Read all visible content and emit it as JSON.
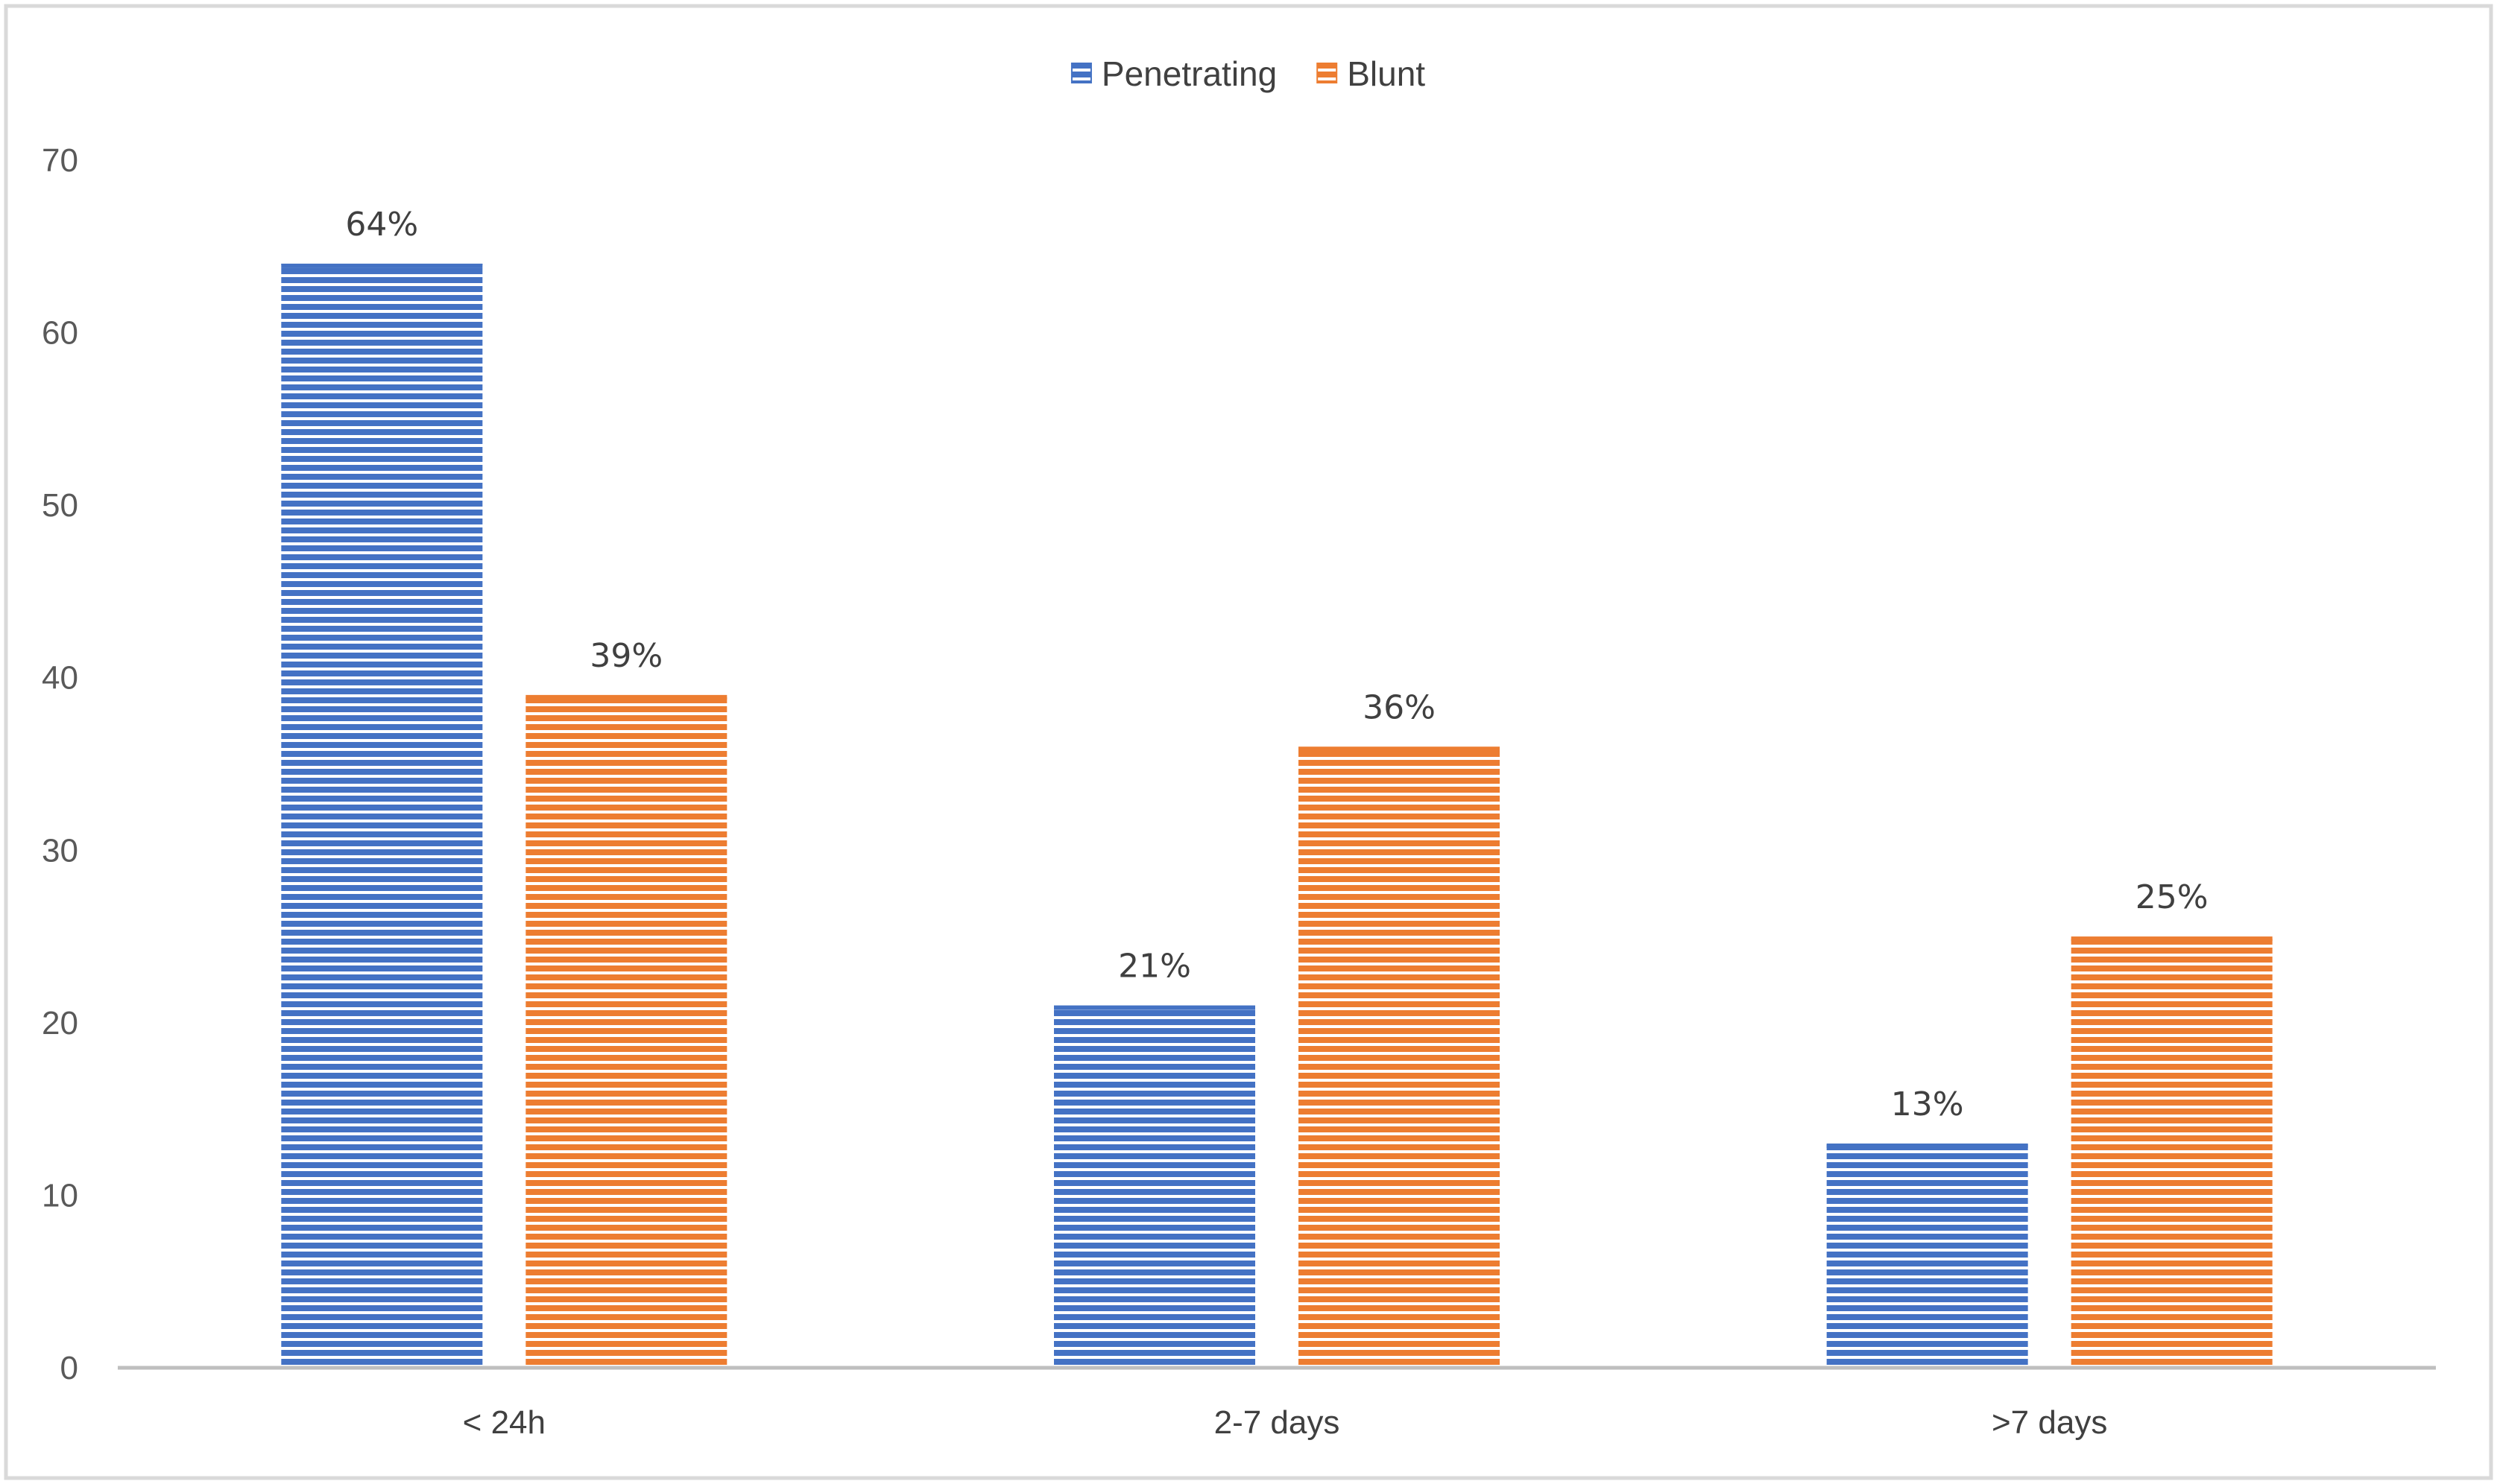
{
  "chart_data": {
    "type": "bar",
    "categories": [
      "< 24h",
      "2-7 days",
      ">7 days"
    ],
    "series": [
      {
        "name": "Penetrating",
        "values": [
          64,
          21,
          13
        ],
        "labels": [
          "64%",
          "21%",
          "13%"
        ],
        "color": "#4472C4"
      },
      {
        "name": "Blunt",
        "values": [
          39,
          36,
          25
        ],
        "labels": [
          "39%",
          "36%",
          "25%"
        ],
        "color": "#ED7D31"
      }
    ],
    "title": "",
    "xlabel": "",
    "ylabel": "",
    "ylim": [
      0,
      70
    ],
    "yticks": [
      0,
      10,
      20,
      30,
      40,
      50,
      60,
      70
    ],
    "grid": false,
    "legend_position": "top-center",
    "bar_fill_pattern": "horizontal-stripes"
  }
}
